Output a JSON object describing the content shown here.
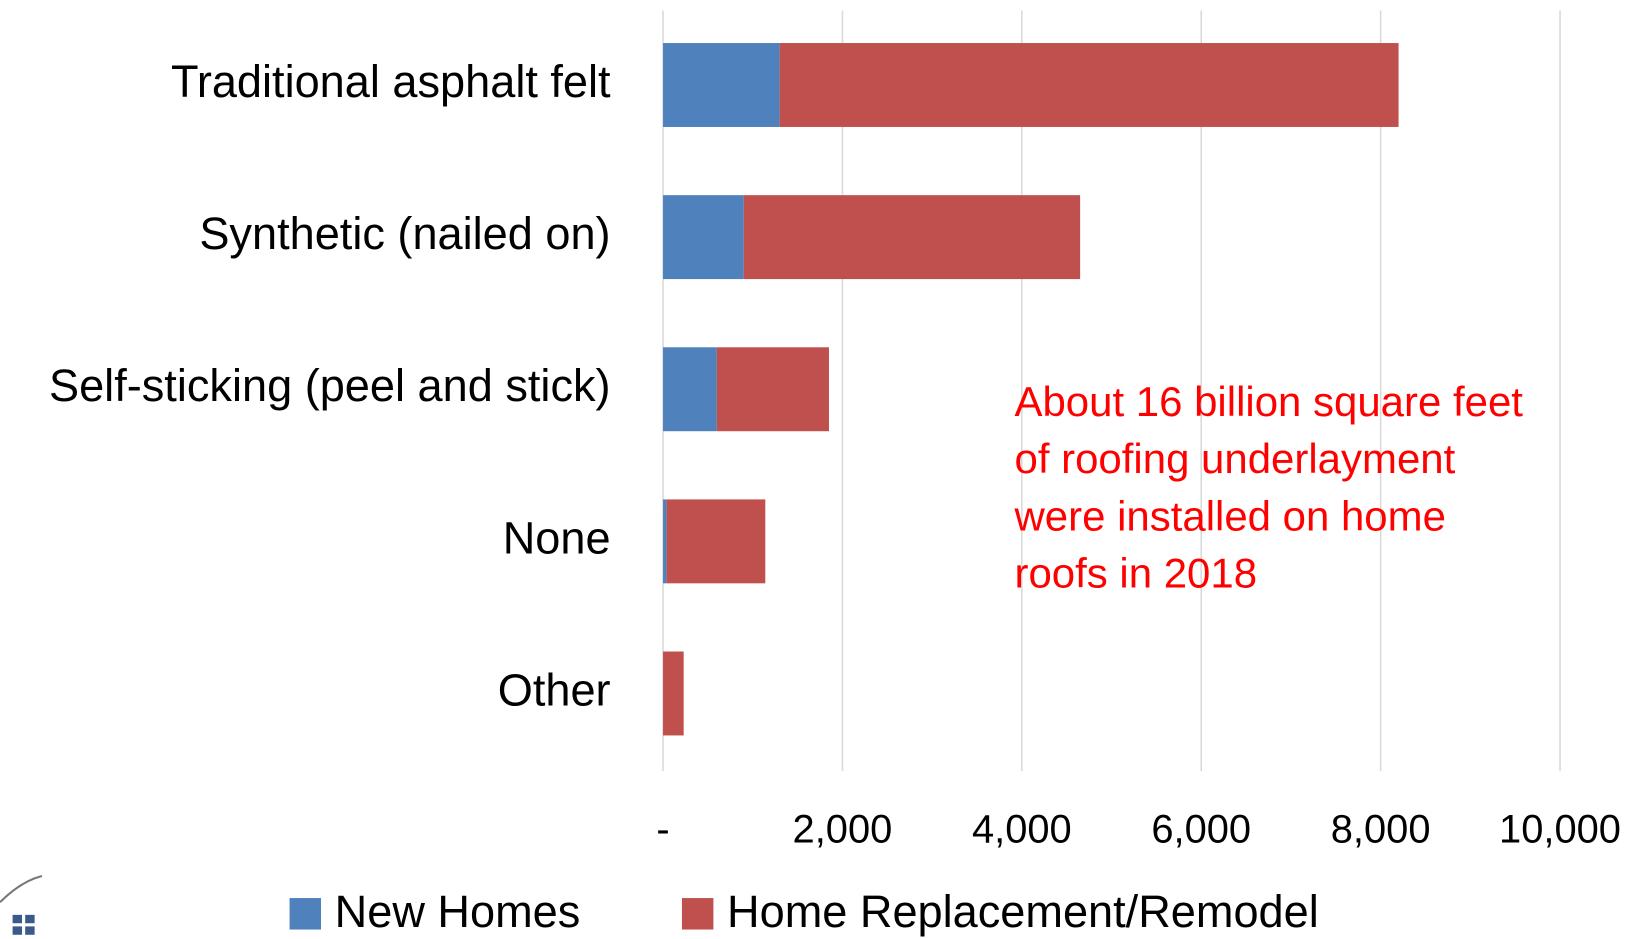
{
  "chart_data": {
    "type": "stacked-barh",
    "categories": [
      "Traditional asphalt felt",
      "Synthetic (nailed on)",
      "Self-sticking (peel and stick)",
      "None",
      "Other"
    ],
    "series": [
      {
        "name": "New Homes",
        "color": "#4f81bd",
        "values": [
          1300,
          900,
          600,
          40,
          0
        ]
      },
      {
        "name": "Home Replacement/Remodel",
        "color": "#c0504d",
        "values": [
          6900,
          3750,
          1250,
          1100,
          230
        ]
      }
    ],
    "xlim": [
      0,
      10000
    ],
    "xticks": [
      {
        "value": 0,
        "label": "-"
      },
      {
        "value": 2000,
        "label": "2,000"
      },
      {
        "value": 4000,
        "label": "4,000"
      },
      {
        "value": 6000,
        "label": "6,000"
      },
      {
        "value": 8000,
        "label": "8,000"
      },
      {
        "value": 10000,
        "label": "10,000"
      }
    ],
    "grid": true,
    "legend": "bottom",
    "annotation": [
      "About 16 billion square feet",
      "of roofing underlayment",
      "were installed on home",
      "roofs in 2018"
    ]
  }
}
